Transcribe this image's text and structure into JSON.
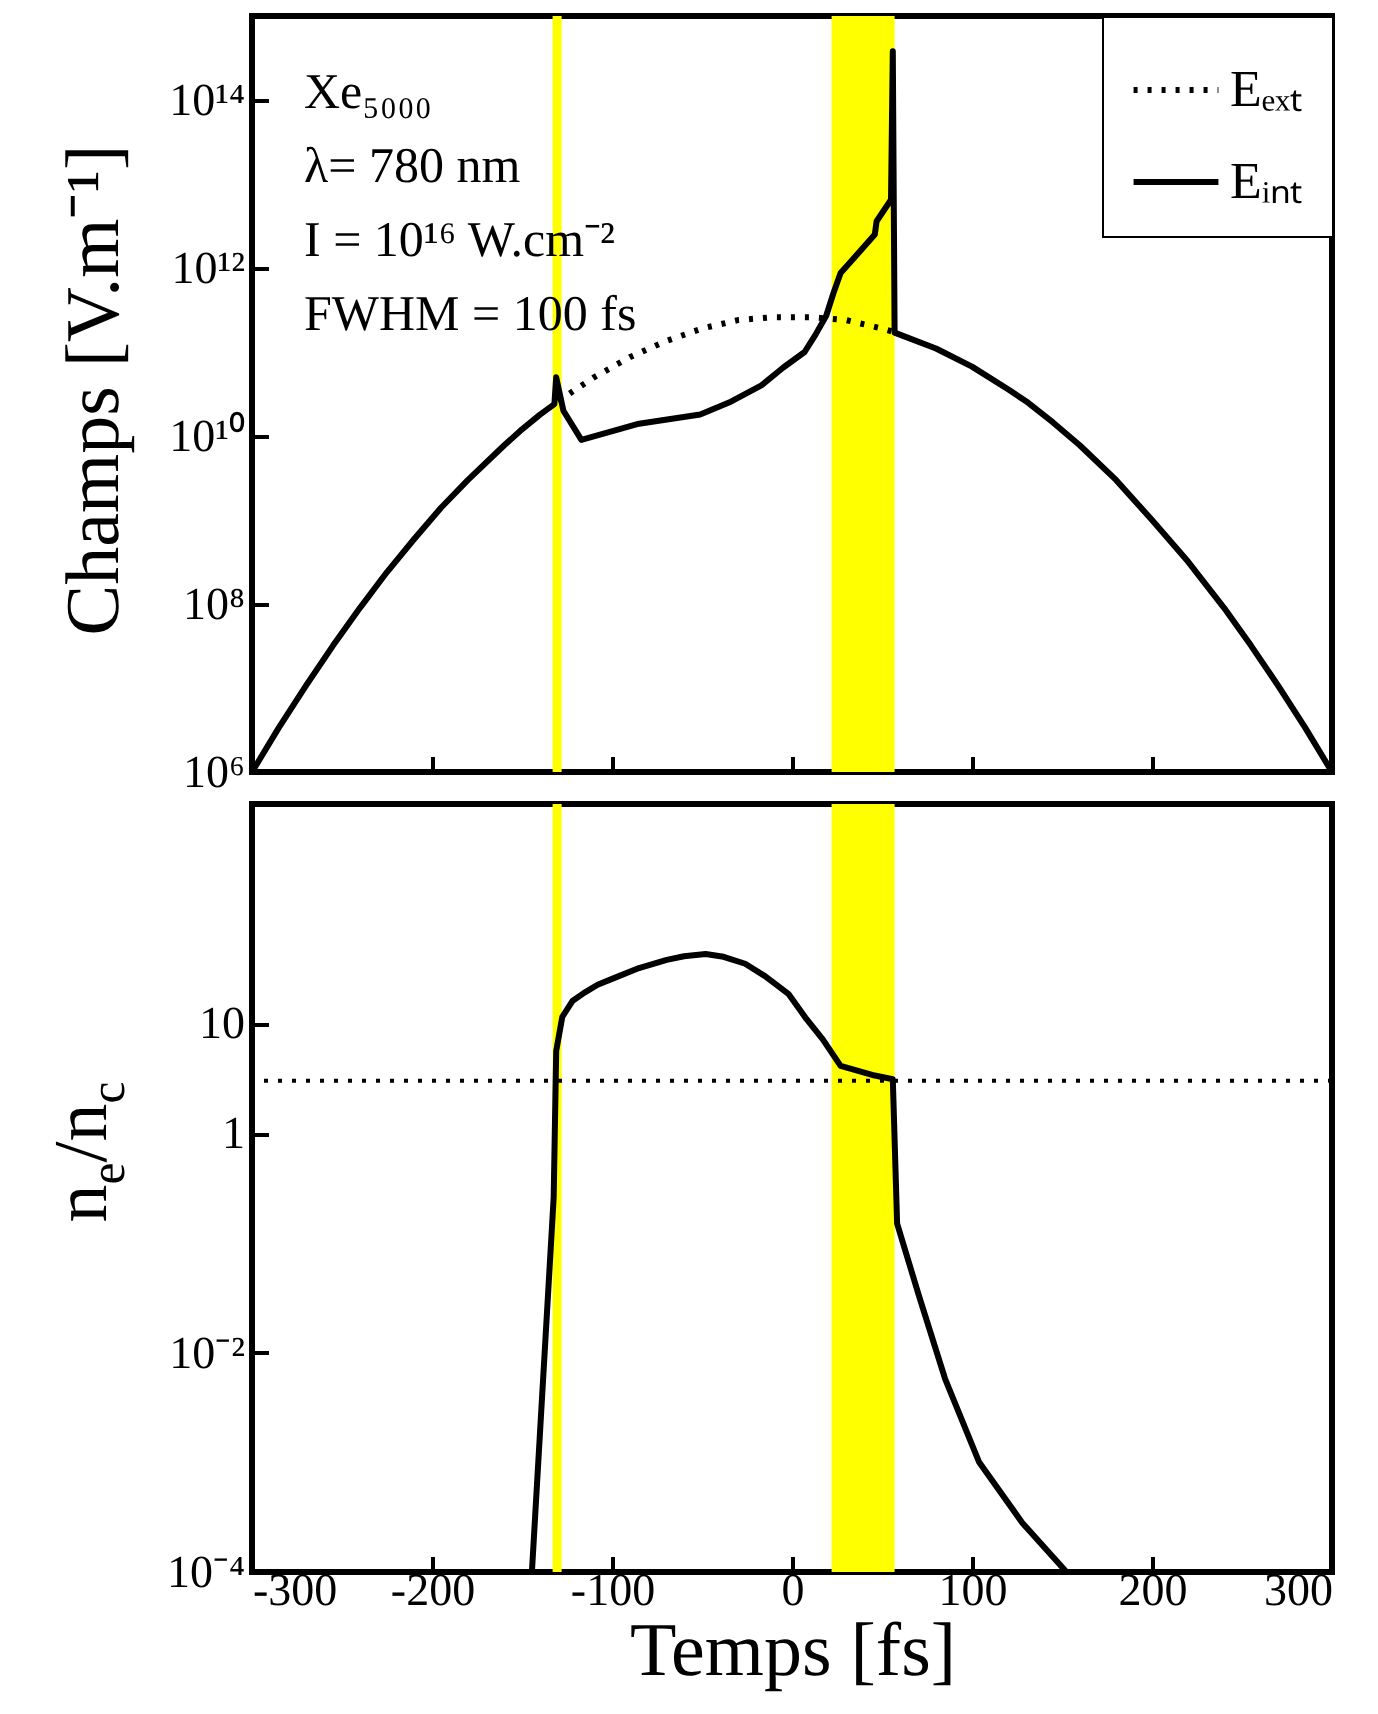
{
  "chart_data": [
    {
      "type": "line",
      "ylabel": "Champs [V.m⁻¹]",
      "log": "y",
      "legend": "top right",
      "tick_labels": "y",
      "annotations": [
        "Xe₅₀₀₀",
        "λ= 780 nm",
        "I = 10¹⁶ W.cm⁻²",
        "FWHM = 100 fs"
      ],
      "xlim": [
        -300,
        300
      ],
      "xticks": [
        -300,
        -200,
        -100,
        0,
        100,
        200,
        300
      ],
      "ylim": [
        1000000.0,
        1000000000000000.0
      ],
      "yticks": [
        {
          "value": 1000000.0,
          "label": "10⁶"
        },
        {
          "value": 100000000.0,
          "label": "10⁸"
        },
        {
          "value": 10000000000.0,
          "label": "10¹⁰"
        },
        {
          "value": 1000000000000.0,
          "label": "10¹²"
        },
        {
          "value": 100000000000000.0,
          "label": "10¹⁴"
        }
      ],
      "bands": [
        {
          "axis": "x",
          "from": -133,
          "to": -128,
          "color": "#ffff00"
        },
        {
          "axis": "x",
          "from": 22,
          "to": 57,
          "color": "#ffff00"
        }
      ],
      "series": [
        {
          "name": "Eₑₓₜ",
          "color": "#000000",
          "line_style": "dotted",
          "x": [
            -130,
            -110,
            -90,
            -70,
            -50,
            -30,
            -10,
            10,
            30,
            50,
            58
          ],
          "values": [
            26000000000.0,
            50000000000.0,
            87000000000.0,
            135000000000.0,
            190000000000.0,
            240000000000.0,
            260000000000.0,
            260000000000.0,
            240000000000.0,
            190000000000.0,
            170000000000.0
          ]
        },
        {
          "name": "Eᵢₙₜ",
          "color": "#000000",
          "line_style": "solid",
          "x": [
            -300,
            -285,
            -270,
            -255,
            -240,
            -225,
            -210,
            -195,
            -180,
            -160,
            -150,
            -140,
            -132,
            -131,
            -127,
            -117,
            -85,
            -51,
            -35,
            -17,
            -5,
            7,
            13,
            19,
            23,
            27,
            46,
            47,
            55,
            56,
            57,
            80,
            100,
            120,
            130,
            145,
            160,
            180,
            200,
            220,
            240,
            255,
            270,
            285,
            300
          ],
          "values": [
            1000000.0,
            3400000.0,
            10700000.0,
            32000000.0,
            90000000.0,
            240000000.0,
            590000000.0,
            1400000000.0,
            3000000000.0,
            7700000000.0,
            12000000000.0,
            18000000000.0,
            24000000000.0,
            50000000000.0,
            20000000000.0,
            9000000000.0,
            14000000000.0,
            18000000000.0,
            25000000000.0,
            40000000000.0,
            65000000000.0,
            100000000000.0,
            160000000000.0,
            270000000000.0,
            500000000000.0,
            870000000000.0,
            2500000000000.0,
            3600000000000.0,
            6500000000000.0,
            380000000000000.0,
            170000000000.0,
            110000000000.0,
            67000000000.0,
            36000000000.0,
            26000000000.0,
            14500000000.0,
            7700000000.0,
            3000000000.0,
            1000000000.0,
            320000000.0,
            90000000.0,
            32000000.0,
            10700000.0,
            3400000.0,
            1000000.0
          ]
        }
      ]
    },
    {
      "type": "line",
      "xlabel": "Temps [fs]",
      "ylabel": "n$_{e}$/n$_{c}$",
      "log": "y",
      "xlim": [
        -300,
        300
      ],
      "xticks": [
        -300,
        -200,
        -100,
        0,
        100,
        200,
        300
      ],
      "ylim": [
        0.0001,
        1000.0
      ],
      "yticks": [
        {
          "value": 0.0001,
          "label": "10⁻⁴"
        },
        {
          "value": 0.01,
          "label": "10⁻²"
        },
        1,
        10
      ],
      "bands": [
        {
          "axis": "x",
          "from": -133,
          "to": -128,
          "color": "#ffff00"
        },
        {
          "axis": "x",
          "from": 22,
          "to": 57,
          "color": "#ffff00"
        }
      ],
      "ref_lines": [
        {
          "axis": "y",
          "value": 3,
          "color": "#000000",
          "line_style": "dotted"
        }
      ],
      "series": [
        {
          "color": "#000000",
          "line_style": "solid",
          "x": [
            -144.5,
            -132.4,
            -131,
            -127.6,
            -122,
            -115.5,
            -108,
            -98.6,
            -85,
            -69.6,
            -60,
            -48,
            -38,
            -26,
            -15,
            -2,
            8,
            17,
            27,
            46,
            56,
            58.4,
            70.5,
            85,
            104,
            128,
            152.5
          ],
          "values": [
            0.0001,
            0.26,
            5.6,
            11.5,
            16,
            19,
            22.5,
            26,
            32,
            38,
            41,
            43,
            40.5,
            35,
            27,
            18.6,
            11,
            7.2,
            4.1,
            3.35,
            3.1,
            0.15,
            0.033,
            0.0058,
            0.001,
            0.00028,
            0.0001
          ]
        }
      ]
    }
  ]
}
